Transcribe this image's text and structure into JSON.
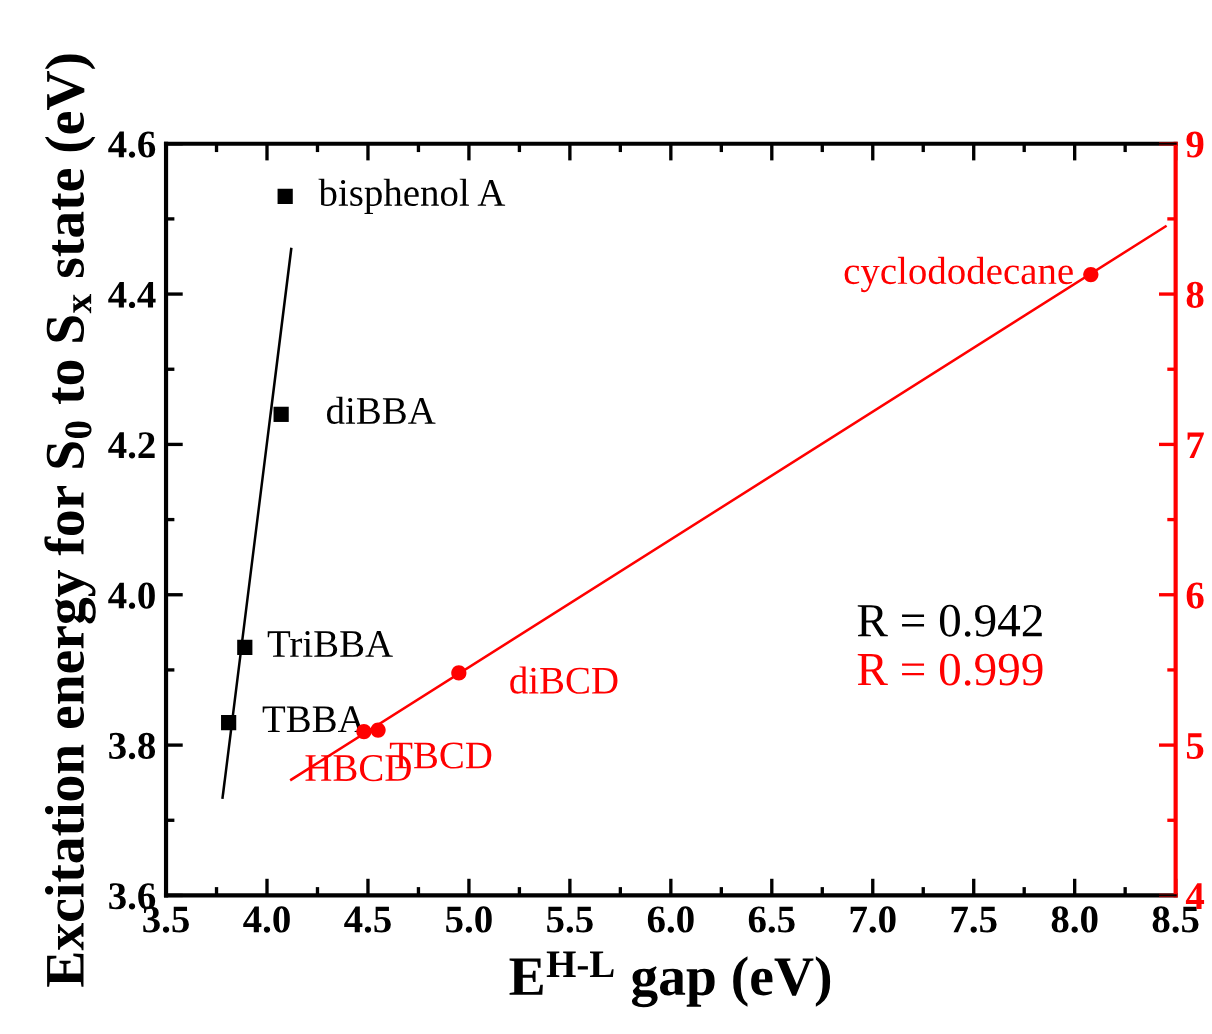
{
  "chart_data": {
    "type": "scatter",
    "xlabel": "E$^{H-L}$ gap (eV)",
    "ylabel": "Excitation energy for S$_{0}$ to S$_{x}$ state (eV)",
    "xlim": [
      3.5,
      8.5
    ],
    "xticks": [
      3.5,
      {
        "value": 4,
        "label": "4.0"
      },
      4.5,
      {
        "value": 5,
        "label": "5.0"
      },
      5.5,
      {
        "value": 6,
        "label": "6.0"
      },
      6.5,
      {
        "value": 7,
        "label": "7.0"
      },
      7.5,
      {
        "value": 8,
        "label": "8.0"
      },
      8.5
    ],
    "ylim": [
      3.6,
      4.6
    ],
    "yticks": [
      3.6,
      3.8,
      {
        "value": 4,
        "label": "4.0"
      },
      4.2,
      4.4,
      4.6
    ],
    "y2lim": [
      4,
      9
    ],
    "y2ticks": [
      4,
      5,
      6,
      7,
      8,
      9
    ],
    "grid": false,
    "legend": false,
    "series": [
      {
        "marker": "square",
        "color": "#000000",
        "x": [
          4.09,
          4.07,
          3.89,
          3.81
        ],
        "values": [
          4.53,
          4.24,
          3.93,
          3.83
        ]
      },
      {
        "marker": "circle",
        "color": "#ff0000",
        "axis": "y2",
        "x": [
          4.48,
          4.55,
          4.95,
          8.08
        ],
        "values": [
          5.09,
          5.1,
          5.48,
          8.13
        ]
      },
      {
        "type": "line",
        "marker": "none",
        "name": "R = 0.942",
        "color": "#000000",
        "x": [
          3.78,
          4.12
        ],
        "values": [
          3.73,
          4.46
        ]
      },
      {
        "type": "line",
        "marker": "none",
        "name": "R = 0.999",
        "color": "#ff0000",
        "axis": "y2",
        "x": [
          4.12,
          8.45
        ],
        "values": [
          4.77,
          8.45
        ]
      }
    ],
    "annotations": [
      {
        "text": "bisphenol A",
        "x": 4.09,
        "y": 4.53
      },
      {
        "text": "diBBA",
        "x": 4.07,
        "y": 4.24
      },
      {
        "text": "TriBBA",
        "x": 3.89,
        "y": 3.93
      },
      {
        "text": "TBBA",
        "x": 3.81,
        "y": 3.83
      },
      "HBCD",
      "TBCD",
      "diBCD",
      "cyclododecane"
    ]
  }
}
